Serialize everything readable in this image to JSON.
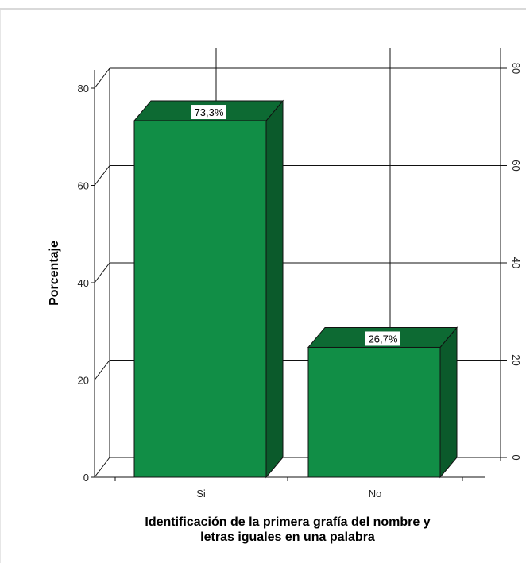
{
  "colors": {
    "front": "#118e46",
    "top": "#0d6a33",
    "side": "#0b5a2b",
    "outline": "#111111",
    "grid": "#111111",
    "label_bg": "#ffffff"
  },
  "chart_data": {
    "type": "bar",
    "categories": [
      "Si",
      "No"
    ],
    "values": [
      73.3,
      26.7
    ],
    "data_labels": [
      "73,3%",
      "26,7%"
    ],
    "ylabel": "Porcentaje",
    "xlabel_lines": [
      "Identificación de la primera grafía del nombre y",
      "letras iguales en una palabra"
    ],
    "ylim": [
      0,
      80
    ],
    "yticks": [
      "0",
      "20",
      "40",
      "60",
      "80"
    ],
    "grid": true,
    "style": "3d",
    "legend": "none"
  }
}
